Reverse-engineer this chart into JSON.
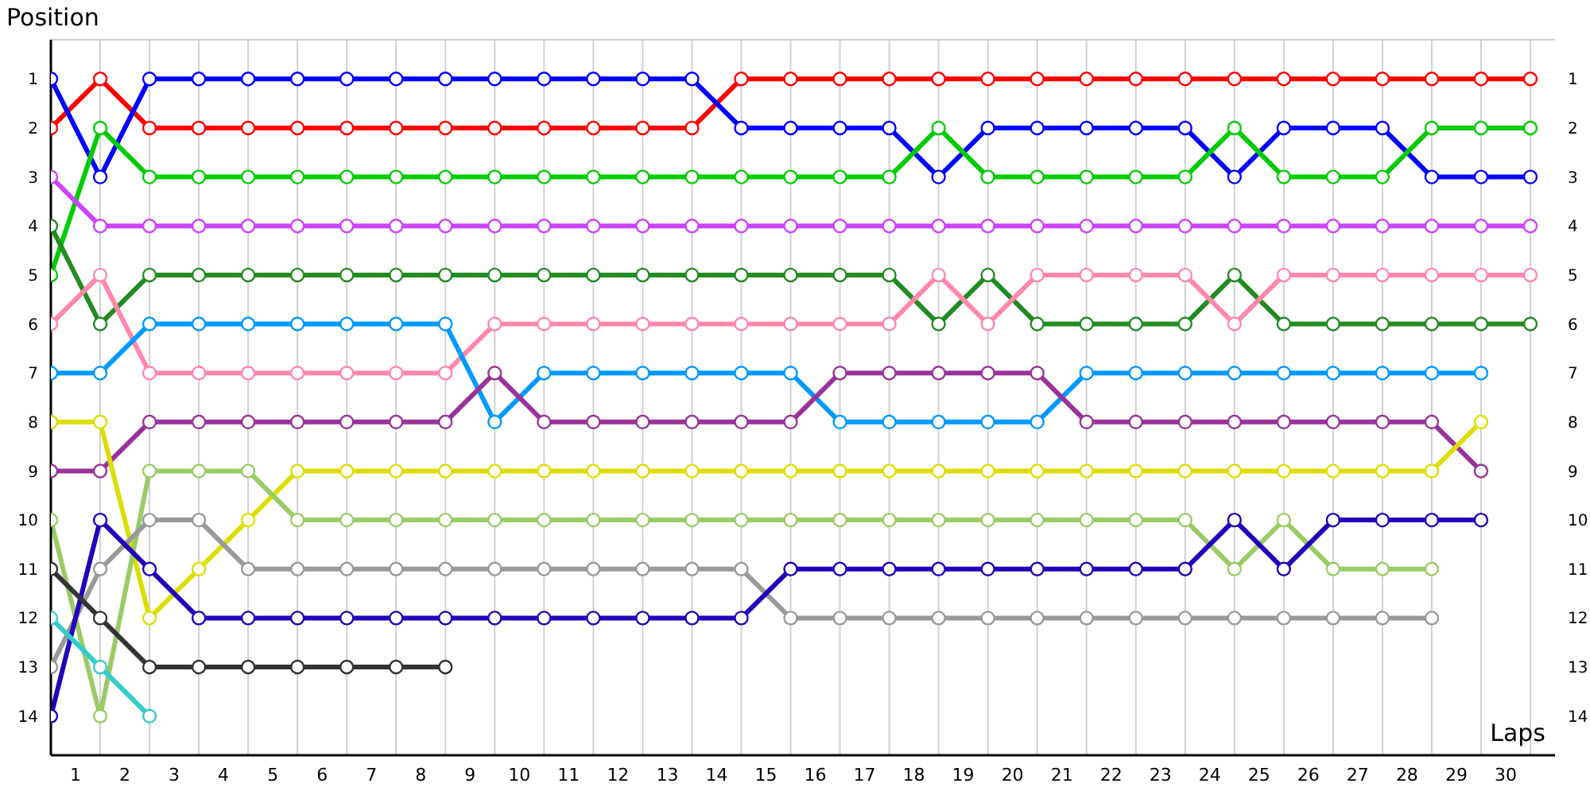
{
  "chart_data": {
    "type": "line",
    "xlabel": "Laps",
    "ylabel": "Position",
    "x": [
      0,
      1,
      2,
      3,
      4,
      5,
      6,
      7,
      8,
      9,
      10,
      11,
      12,
      13,
      14,
      15,
      16,
      17,
      18,
      19,
      20,
      21,
      22,
      23,
      24,
      25,
      26,
      27,
      28,
      29,
      30
    ],
    "xlim": [
      0,
      30.5
    ],
    "xticks": [
      {
        "value": 0.5,
        "label": "1"
      },
      {
        "value": 1.5,
        "label": "2"
      },
      {
        "value": 2.5,
        "label": "3"
      },
      {
        "value": 3.5,
        "label": "4"
      },
      {
        "value": 4.5,
        "label": "5"
      },
      {
        "value": 5.5,
        "label": "6"
      },
      {
        "value": 6.5,
        "label": "7"
      },
      {
        "value": 7.5,
        "label": "8"
      },
      {
        "value": 8.5,
        "label": "9"
      },
      {
        "value": 9.5,
        "label": "10"
      },
      {
        "value": 10.5,
        "label": "11"
      },
      {
        "value": 11.5,
        "label": "12"
      },
      {
        "value": 12.5,
        "label": "13"
      },
      {
        "value": 13.5,
        "label": "14"
      },
      {
        "value": 14.5,
        "label": "15"
      },
      {
        "value": 15.5,
        "label": "16"
      },
      {
        "value": 16.5,
        "label": "17"
      },
      {
        "value": 17.5,
        "label": "18"
      },
      {
        "value": 18.5,
        "label": "19"
      },
      {
        "value": 19.5,
        "label": "20"
      },
      {
        "value": 20.5,
        "label": "21"
      },
      {
        "value": 21.5,
        "label": "22"
      },
      {
        "value": 22.5,
        "label": "23"
      },
      {
        "value": 23.5,
        "label": "24"
      },
      {
        "value": 24.5,
        "label": "25"
      },
      {
        "value": 25.5,
        "label": "26"
      },
      {
        "value": 26.5,
        "label": "27"
      },
      {
        "value": 27.5,
        "label": "28"
      },
      {
        "value": 28.5,
        "label": "29"
      },
      {
        "value": 29.5,
        "label": "30"
      }
    ],
    "ylim": [
      14.8,
      0.2
    ],
    "yticks": [
      1,
      2,
      3,
      4,
      5,
      6,
      7,
      8,
      9,
      10,
      11,
      12,
      13,
      14
    ],
    "y2lim": [
      14.8,
      0.2
    ],
    "y2ticks": [
      1,
      2,
      3,
      4,
      5,
      6,
      7,
      8,
      9,
      10,
      11,
      12,
      13,
      14
    ],
    "grid": true,
    "marker": "circle",
    "line_style": "solid",
    "series": [
      {
        "color": "#ff0000",
        "values": [
          2,
          1,
          2,
          2,
          2,
          2,
          2,
          2,
          2,
          2,
          2,
          2,
          2,
          2,
          1,
          1,
          1,
          1,
          1,
          1,
          1,
          1,
          1,
          1,
          1,
          1,
          1,
          1,
          1,
          1,
          1
        ]
      },
      {
        "color": "#0000ff",
        "values": [
          1,
          3,
          1,
          1,
          1,
          1,
          1,
          1,
          1,
          1,
          1,
          1,
          1,
          1,
          2,
          2,
          2,
          2,
          3,
          2,
          2,
          2,
          2,
          2,
          3,
          2,
          2,
          2,
          3,
          3,
          3
        ]
      },
      {
        "color": "#00cc00",
        "values": [
          5,
          2,
          3,
          3,
          3,
          3,
          3,
          3,
          3,
          3,
          3,
          3,
          3,
          3,
          3,
          3,
          3,
          3,
          2,
          3,
          3,
          3,
          3,
          3,
          2,
          3,
          3,
          3,
          2,
          2,
          2
        ]
      },
      {
        "color": "#cc44ff",
        "values": [
          3,
          4,
          4,
          4,
          4,
          4,
          4,
          4,
          4,
          4,
          4,
          4,
          4,
          4,
          4,
          4,
          4,
          4,
          4,
          4,
          4,
          4,
          4,
          4,
          4,
          4,
          4,
          4,
          4,
          4,
          4
        ]
      },
      {
        "color": "#228b22",
        "values": [
          4,
          6,
          5,
          5,
          5,
          5,
          5,
          5,
          5,
          5,
          5,
          5,
          5,
          5,
          5,
          5,
          5,
          5,
          6,
          5,
          6,
          6,
          6,
          6,
          5,
          6,
          6,
          6,
          6,
          6,
          6
        ]
      },
      {
        "color": "#ff88aa",
        "values": [
          6,
          5,
          7,
          7,
          7,
          7,
          7,
          7,
          7,
          6,
          6,
          6,
          6,
          6,
          6,
          6,
          6,
          6,
          5,
          6,
          5,
          5,
          5,
          5,
          6,
          5,
          5,
          5,
          5,
          5,
          5
        ]
      },
      {
        "color": "#0099ff",
        "values": [
          7,
          7,
          6,
          6,
          6,
          6,
          6,
          6,
          6,
          8,
          7,
          7,
          7,
          7,
          7,
          7,
          8,
          8,
          8,
          8,
          8,
          7,
          7,
          7,
          7,
          7,
          7,
          7,
          7,
          7,
          null
        ]
      },
      {
        "color": "#993399",
        "values": [
          9,
          9,
          8,
          8,
          8,
          8,
          8,
          8,
          8,
          7,
          8,
          8,
          8,
          8,
          8,
          8,
          7,
          7,
          7,
          7,
          7,
          8,
          8,
          8,
          8,
          8,
          8,
          8,
          8,
          9,
          null
        ]
      },
      {
        "color": "#dddd00",
        "values": [
          8,
          8,
          12,
          11,
          10,
          9,
          9,
          9,
          9,
          9,
          9,
          9,
          9,
          9,
          9,
          9,
          9,
          9,
          9,
          9,
          9,
          9,
          9,
          9,
          9,
          9,
          9,
          9,
          9,
          8,
          null
        ]
      },
      {
        "color": "#99cc66",
        "values": [
          10,
          14,
          9,
          9,
          9,
          10,
          10,
          10,
          10,
          10,
          10,
          10,
          10,
          10,
          10,
          10,
          10,
          10,
          10,
          10,
          10,
          10,
          10,
          10,
          11,
          10,
          11,
          11,
          11,
          null,
          null
        ]
      },
      {
        "color": "#999999",
        "values": [
          13,
          11,
          10,
          10,
          11,
          11,
          11,
          11,
          11,
          11,
          11,
          11,
          11,
          11,
          11,
          12,
          12,
          12,
          12,
          12,
          12,
          12,
          12,
          12,
          12,
          12,
          12,
          12,
          12,
          null,
          null
        ]
      },
      {
        "color": "#2200bb",
        "values": [
          14,
          10,
          11,
          12,
          12,
          12,
          12,
          12,
          12,
          12,
          12,
          12,
          12,
          12,
          12,
          11,
          11,
          11,
          11,
          11,
          11,
          11,
          11,
          11,
          10,
          11,
          10,
          10,
          10,
          10,
          null
        ]
      },
      {
        "color": "#333333",
        "values": [
          11,
          12,
          13,
          13,
          13,
          13,
          13,
          13,
          13,
          null,
          null,
          null,
          null,
          null,
          null,
          null,
          null,
          null,
          null,
          null,
          null,
          null,
          null,
          null,
          null,
          null,
          null,
          null,
          null,
          null,
          null
        ]
      },
      {
        "color": "#33cccc",
        "values": [
          12,
          13,
          14,
          null,
          null,
          null,
          null,
          null,
          null,
          null,
          null,
          null,
          null,
          null,
          null,
          null,
          null,
          null,
          null,
          null,
          null,
          null,
          null,
          null,
          null,
          null,
          null,
          null,
          null,
          null,
          null
        ]
      }
    ]
  }
}
